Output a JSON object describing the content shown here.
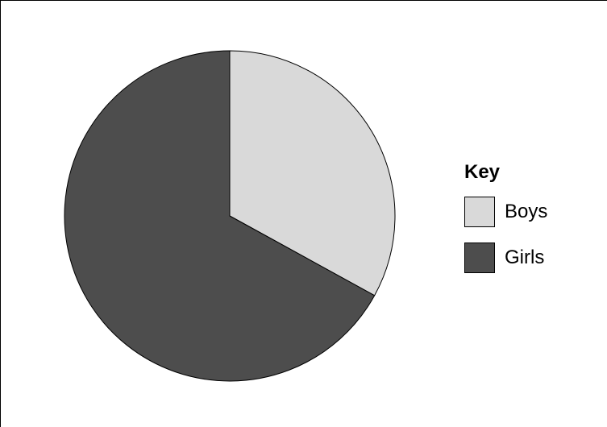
{
  "chart_data": {
    "type": "pie",
    "title": "",
    "legend_title": "Key",
    "legend_position": "right",
    "series": [
      {
        "name": "Boys",
        "value": 33,
        "color": "#d9d9d9"
      },
      {
        "name": "Girls",
        "value": 67,
        "color": "#4d4d4d"
      }
    ]
  }
}
